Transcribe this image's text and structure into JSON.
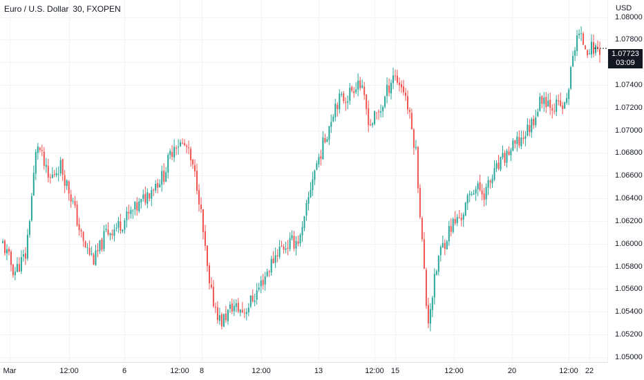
{
  "title": "Euro / U.S. Dollar, 30, FXOPEN",
  "currency": "USD",
  "last_price": {
    "value": "1.07723",
    "countdown": "03:09"
  },
  "colors": {
    "up": "#26a69a",
    "down": "#ef5350",
    "grid": "#f0f3fa",
    "axis_text": "#131722",
    "tag_bg": "#131722"
  },
  "chart_data": {
    "type": "candlestick",
    "y_axis": {
      "ticks": [
        "1.08000",
        "1.07800",
        "1.07600",
        "1.07400",
        "1.07200",
        "1.07000",
        "1.06800",
        "1.06600",
        "1.06400",
        "1.06200",
        "1.06000",
        "1.05800",
        "1.05600",
        "1.05400",
        "1.05200",
        "1.05000"
      ],
      "range": [
        1.0495,
        1.0815
      ]
    },
    "x_axis": {
      "ticks": [
        "Mar",
        "12:00",
        "6",
        "12:00",
        "8",
        "12:00",
        "13",
        "12:00",
        "15",
        "12:00",
        "20",
        "12:00",
        "22"
      ]
    },
    "price_path": [
      1.06,
      1.0575,
      1.059,
      1.069,
      1.0655,
      1.067,
      1.064,
      1.06,
      1.0585,
      1.061,
      1.0615,
      1.0625,
      1.0635,
      1.065,
      1.066,
      1.069,
      1.0685,
      1.065,
      1.056,
      1.053,
      1.0545,
      1.054,
      1.0555,
      1.0575,
      1.0595,
      1.06,
      1.0605,
      1.066,
      1.069,
      1.0725,
      1.073,
      1.0745,
      1.0705,
      1.072,
      1.075,
      1.0735,
      1.068,
      1.053,
      1.059,
      1.0615,
      1.0625,
      1.065,
      1.0645,
      1.0665,
      1.068,
      1.069,
      1.0705,
      1.073,
      1.0722,
      1.072,
      1.0785,
      1.0772,
      1.0772
    ]
  }
}
